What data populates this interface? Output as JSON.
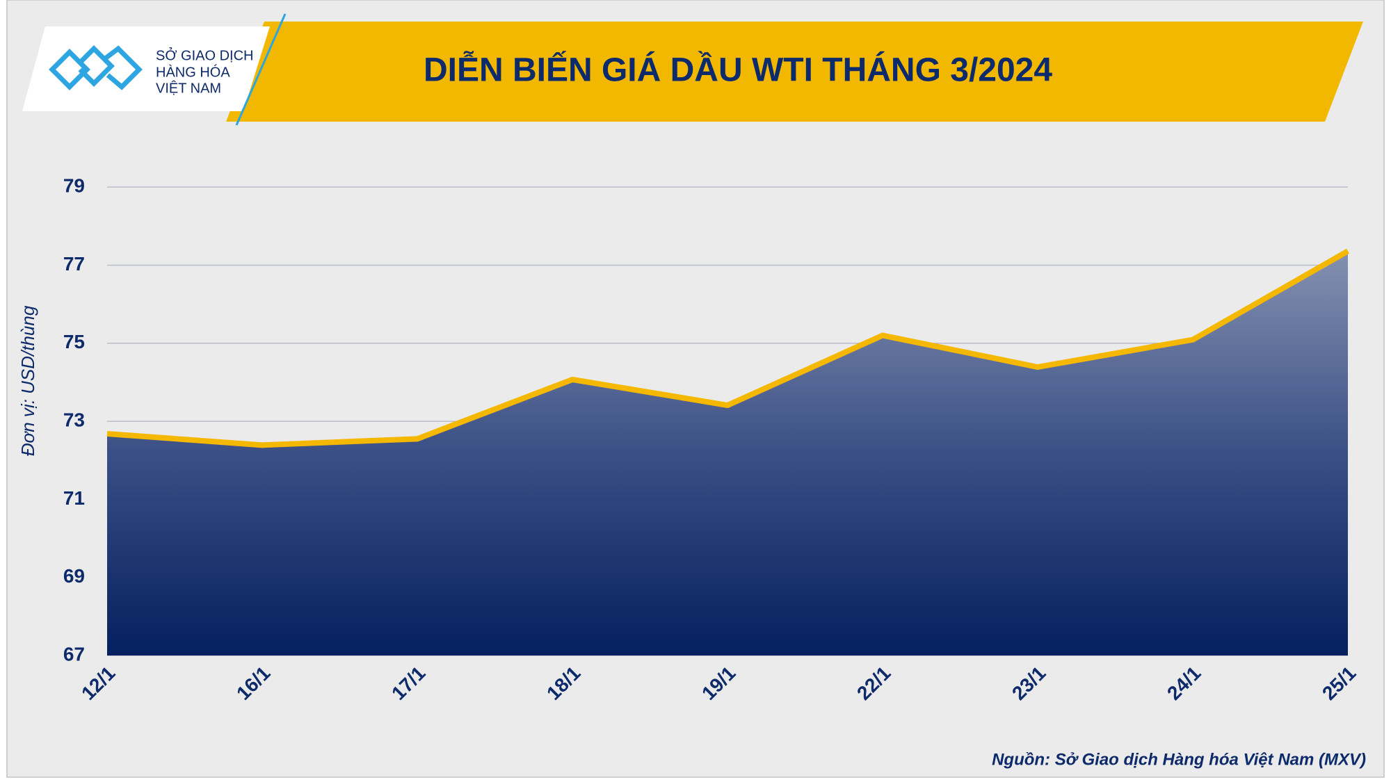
{
  "logo": [
    "SỞ GIAO DỊCH",
    "HÀNG HÓA",
    "VIỆT NAM"
  ],
  "chart_data": {
    "type": "area",
    "title": "DIỄN BIẾN GIÁ DẦU WTI THÁNG 3/2024",
    "y_label": "Đơn vị: USD/thùng",
    "source": "Nguồn: Sở Giao dịch Hàng hóa Việt Nam (MXV)",
    "categories": [
      "12/1",
      "16/1",
      "17/1",
      "18/1",
      "19/1",
      "22/1",
      "23/1",
      "24/1",
      "25/1"
    ],
    "values": [
      72.68,
      72.39,
      72.55,
      74.07,
      73.41,
      75.2,
      74.39,
      75.09,
      77.36
    ],
    "color": "#f5b800",
    "ylim": [
      67,
      80
    ],
    "yticks": [
      67,
      69,
      71,
      73,
      75,
      77,
      79
    ],
    "grid": true
  }
}
